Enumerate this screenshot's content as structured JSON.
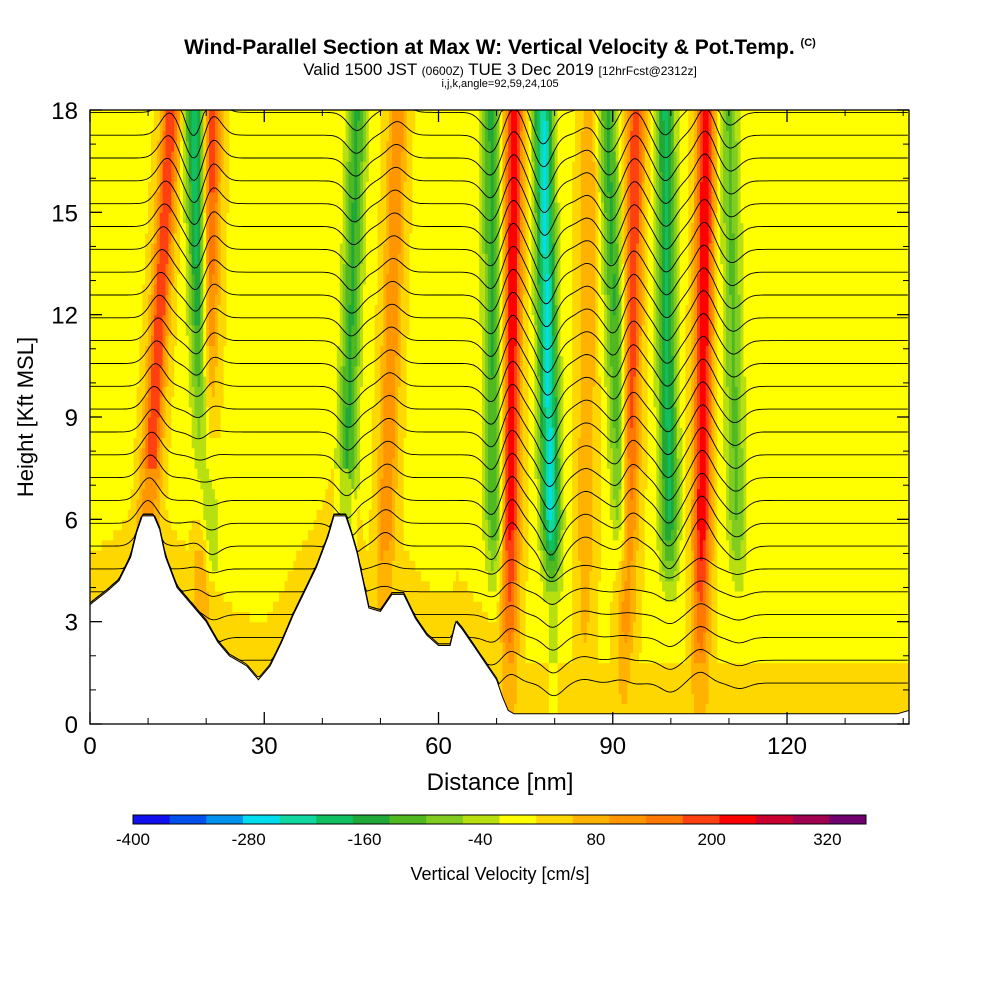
{
  "header": {
    "title": "Wind-Parallel Section at Max W: Vertical Velocity & Pot.Temp.",
    "title_mark": "(C)",
    "subtitle_valid": "Valid 1500 JST",
    "subtitle_z": "(0600Z)",
    "subtitle_date": "TUE 3 Dec 2019",
    "subtitle_fcst": "[12hrFcst@2312z]",
    "subsubtitle": "i,j,k,angle=92,59,24,105"
  },
  "chart_data": {
    "type": "heatmap",
    "title": "Wind-Parallel Section at Max W: Vertical Velocity & Pot.Temp.",
    "xlabel": "Distance [nm]",
    "ylabel": "Height [Kft MSL]",
    "xlim": [
      0,
      141
    ],
    "ylim": [
      0,
      18
    ],
    "xticks": [
      0,
      30,
      60,
      90,
      120
    ],
    "yticks": [
      0,
      3,
      6,
      9,
      12,
      15,
      18
    ],
    "colorbar": {
      "label": "Vertical Velocity [cm/s]",
      "min": -400,
      "max": 360,
      "step": 40,
      "tick_labels": [
        "-400",
        "-280",
        "-160",
        "-40",
        "80",
        "200",
        "320"
      ],
      "colors": [
        "#1010ee",
        "#0050ee",
        "#0090ee",
        "#00ddee",
        "#10d8a0",
        "#10c060",
        "#20a838",
        "#50b820",
        "#80cc20",
        "#b8e010",
        "#ffff00",
        "#ffd700",
        "#ffb300",
        "#ff9600",
        "#ff7800",
        "#ff4010",
        "#ff0000",
        "#cc0030",
        "#a00050",
        "#700070"
      ]
    },
    "velocity_cores": [
      {
        "type": "updraft",
        "top_x": 14,
        "bottom_x": 8,
        "value": 200
      },
      {
        "type": "downdraft",
        "top_x": 18,
        "bottom_x": 21,
        "value": -240
      },
      {
        "type": "updraft",
        "top_x": 21,
        "bottom_x": 19,
        "value": 200
      },
      {
        "type": "downdraft",
        "top_x": 46,
        "bottom_x": 43,
        "value": -160
      },
      {
        "type": "updraft",
        "top_x": 53,
        "bottom_x": 50,
        "value": 120
      },
      {
        "type": "downdraft",
        "top_x": 69,
        "bottom_x": 70,
        "value": -160
      },
      {
        "type": "updraft",
        "top_x": 73,
        "bottom_x": 72,
        "value": 240
      },
      {
        "type": "downdraft",
        "top_x": 78,
        "bottom_x": 80,
        "value": -280
      },
      {
        "type": "updraft",
        "top_x": 86,
        "bottom_x": 85,
        "value": 80
      },
      {
        "type": "downdraft",
        "top_x": 89,
        "bottom_x": 93,
        "value": -160
      },
      {
        "type": "updraft",
        "top_x": 94,
        "bottom_x": 92,
        "value": 200
      },
      {
        "type": "downdraft",
        "top_x": 99,
        "bottom_x": 100,
        "value": -200
      },
      {
        "type": "updraft",
        "top_x": 106,
        "bottom_x": 105,
        "value": 240
      },
      {
        "type": "downdraft",
        "top_x": 110,
        "bottom_x": 112,
        "value": -120
      }
    ],
    "terrain": [
      {
        "x": 0,
        "y": 3.5
      },
      {
        "x": 3,
        "y": 3.9
      },
      {
        "x": 5,
        "y": 4.2
      },
      {
        "x": 7,
        "y": 4.9
      },
      {
        "x": 8,
        "y": 5.6
      },
      {
        "x": 9,
        "y": 6.1
      },
      {
        "x": 11,
        "y": 6.1
      },
      {
        "x": 12,
        "y": 5.7
      },
      {
        "x": 13,
        "y": 4.9
      },
      {
        "x": 15,
        "y": 4.0
      },
      {
        "x": 17,
        "y": 3.6
      },
      {
        "x": 20,
        "y": 3.0
      },
      {
        "x": 22,
        "y": 2.4
      },
      {
        "x": 24,
        "y": 2.0
      },
      {
        "x": 27,
        "y": 1.7
      },
      {
        "x": 29,
        "y": 1.3
      },
      {
        "x": 31,
        "y": 1.7
      },
      {
        "x": 33,
        "y": 2.4
      },
      {
        "x": 35,
        "y": 3.2
      },
      {
        "x": 37,
        "y": 3.9
      },
      {
        "x": 39,
        "y": 4.6
      },
      {
        "x": 41,
        "y": 5.5
      },
      {
        "x": 42,
        "y": 6.1
      },
      {
        "x": 44,
        "y": 6.1
      },
      {
        "x": 45,
        "y": 5.6
      },
      {
        "x": 46,
        "y": 5.0
      },
      {
        "x": 47,
        "y": 4.2
      },
      {
        "x": 48,
        "y": 3.4
      },
      {
        "x": 50,
        "y": 3.3
      },
      {
        "x": 52,
        "y": 3.8
      },
      {
        "x": 54,
        "y": 3.8
      },
      {
        "x": 56,
        "y": 3.1
      },
      {
        "x": 58,
        "y": 2.6
      },
      {
        "x": 60,
        "y": 2.3
      },
      {
        "x": 62,
        "y": 2.3
      },
      {
        "x": 63,
        "y": 3.0
      },
      {
        "x": 64,
        "y": 2.8
      },
      {
        "x": 66,
        "y": 2.3
      },
      {
        "x": 68,
        "y": 1.8
      },
      {
        "x": 70,
        "y": 1.3
      },
      {
        "x": 71,
        "y": 0.8
      },
      {
        "x": 72,
        "y": 0.4
      },
      {
        "x": 73,
        "y": 0.3
      },
      {
        "x": 139,
        "y": 0.3
      },
      {
        "x": 141,
        "y": 0.4
      }
    ],
    "pot_temp_contours": {
      "count": 26,
      "label": "Pot.Temp."
    }
  }
}
